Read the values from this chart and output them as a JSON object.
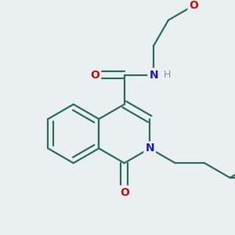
{
  "bg_color": "#eaeff1",
  "bond_color": "#2d6e5e",
  "N_color": "#1a1acc",
  "O_color": "#cc1010",
  "H_color": "#909090",
  "linewidth": 1.6,
  "font_size": 10,
  "xlim": [
    -3.5,
    4.5
  ],
  "ylim": [
    -3.8,
    3.8
  ],
  "BL": 1.0
}
